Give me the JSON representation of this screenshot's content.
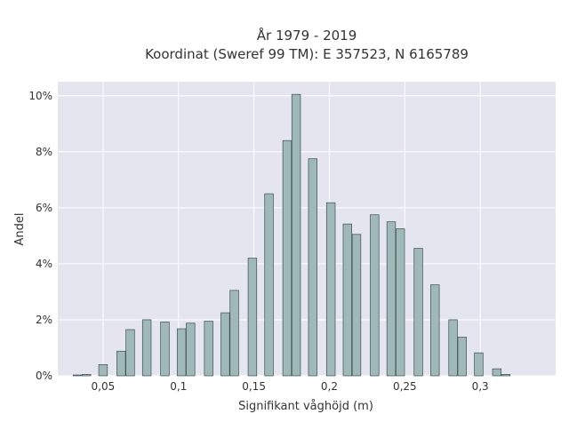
{
  "chart_data": {
    "type": "bar",
    "title_line1": "År 1979 - 2019",
    "title_line2": "Koordinat (Sweref 99 TM): E 357523, N 6165789",
    "xlabel": "Signifikant våghöjd (m)",
    "ylabel": "Andel",
    "xlim": [
      0.02,
      0.35
    ],
    "ylim": [
      0,
      10.5
    ],
    "grid": true,
    "legend": "none",
    "x_ticks": [
      {
        "value": 0.05,
        "label": "0,05"
      },
      {
        "value": 0.1,
        "label": "0,1"
      },
      {
        "value": 0.15,
        "label": "0,15"
      },
      {
        "value": 0.2,
        "label": "0,2"
      },
      {
        "value": 0.25,
        "label": "0,25"
      },
      {
        "value": 0.3,
        "label": "0,3"
      }
    ],
    "y_ticks": [
      {
        "value": 0,
        "label": "0%"
      },
      {
        "value": 2,
        "label": "2%"
      },
      {
        "value": 4,
        "label": "4%"
      },
      {
        "value": 6,
        "label": "6%"
      },
      {
        "value": 8,
        "label": "8%"
      },
      {
        "value": 10,
        "label": "10%"
      }
    ],
    "bar_width": 0.0057,
    "series": [
      {
        "x": [
          0.033,
          0.039,
          0.05,
          0.062,
          0.068,
          0.079,
          0.091,
          0.102,
          0.108,
          0.12,
          0.131,
          0.137,
          0.149,
          0.16,
          0.172,
          0.178,
          0.189,
          0.201,
          0.212,
          0.218,
          0.23,
          0.241,
          0.247,
          0.259,
          0.27,
          0.282,
          0.288,
          0.299,
          0.311,
          0.317
        ],
        "values": [
          0.03,
          0.05,
          0.4,
          0.88,
          1.65,
          2.0,
          1.92,
          1.68,
          1.88,
          1.95,
          2.25,
          3.05,
          4.2,
          6.5,
          8.4,
          10.05,
          7.75,
          6.18,
          5.42,
          5.05,
          5.75,
          5.5,
          5.25,
          4.55,
          3.25,
          2.0,
          1.38,
          0.82,
          0.25,
          0.05
        ]
      }
    ],
    "colors": {
      "plot_bg": "#e5e5ef",
      "grid": "#ffffff",
      "bar_fill": "#9fb8b8",
      "bar_stroke": "#3d4f4f"
    }
  }
}
